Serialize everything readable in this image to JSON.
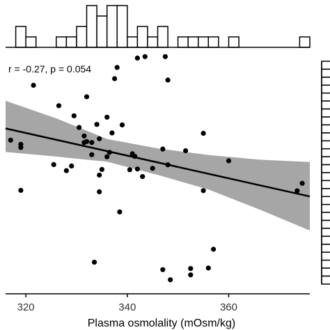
{
  "chart_data": {
    "type": "scatter",
    "title": "",
    "xlabel": "Plasma osmolality (mOsm/kg)",
    "ylabel": "",
    "xlim": [
      316,
      376
    ],
    "ylim": [
      0,
      1
    ],
    "x_ticks": [
      320,
      340,
      360
    ],
    "x_tick_labels": [
      "320",
      "340",
      "360"
    ],
    "annotation": "r = -0.27, p = 0.054",
    "grid": false,
    "legend": "none",
    "points": [
      {
        "x": 317.0,
        "y": 0.64
      },
      {
        "x": 319.0,
        "y": 0.622
      },
      {
        "x": 319.0,
        "y": 0.609
      },
      {
        "x": 319.0,
        "y": 0.426
      },
      {
        "x": 321.5,
        "y": 0.874
      },
      {
        "x": 325.5,
        "y": 0.536
      },
      {
        "x": 326.5,
        "y": 0.787
      },
      {
        "x": 328.0,
        "y": 0.51
      },
      {
        "x": 329.0,
        "y": 0.53
      },
      {
        "x": 329.5,
        "y": 0.744
      },
      {
        "x": 330.5,
        "y": 0.694
      },
      {
        "x": 331.5,
        "y": 0.658
      },
      {
        "x": 331.5,
        "y": 0.63
      },
      {
        "x": 332.0,
        "y": 0.825
      },
      {
        "x": 332.0,
        "y": 0.634
      },
      {
        "x": 333.0,
        "y": 0.63
      },
      {
        "x": 333.0,
        "y": 0.578
      },
      {
        "x": 333.5,
        "y": 0.12
      },
      {
        "x": 334.0,
        "y": 0.707
      },
      {
        "x": 334.5,
        "y": 0.646
      },
      {
        "x": 334.5,
        "y": 0.491
      },
      {
        "x": 334.5,
        "y": 0.42
      },
      {
        "x": 335.0,
        "y": 0.515
      },
      {
        "x": 336.0,
        "y": 0.738
      },
      {
        "x": 336.0,
        "y": 0.569
      },
      {
        "x": 336.5,
        "y": 0.588
      },
      {
        "x": 337.0,
        "y": 0.671
      },
      {
        "x": 337.5,
        "y": 0.902
      },
      {
        "x": 338.0,
        "y": 0.95
      },
      {
        "x": 338.5,
        "y": 0.334
      },
      {
        "x": 339.0,
        "y": 0.705
      },
      {
        "x": 340.5,
        "y": 0.514
      },
      {
        "x": 341.0,
        "y": 0.582
      },
      {
        "x": 341.5,
        "y": 0.571
      },
      {
        "x": 342.0,
        "y": 0.99
      },
      {
        "x": 342.0,
        "y": 0.517
      },
      {
        "x": 343.0,
        "y": 0.485
      },
      {
        "x": 343.5,
        "y": 0.996
      },
      {
        "x": 345.0,
        "y": 0.52
      },
      {
        "x": 347.0,
        "y": 0.602
      },
      {
        "x": 347.0,
        "y": 0.088
      },
      {
        "x": 347.5,
        "y": 0.996
      },
      {
        "x": 348.0,
        "y": 0.896
      },
      {
        "x": 348.0,
        "y": 0.535
      },
      {
        "x": 348.5,
        "y": 0.045
      },
      {
        "x": 351.5,
        "y": 0.595
      },
      {
        "x": 352.5,
        "y": 0.066
      },
      {
        "x": 352.5,
        "y": 0.093
      },
      {
        "x": 355.0,
        "y": 0.425
      },
      {
        "x": 355.0,
        "y": 0.669
      },
      {
        "x": 356.0,
        "y": 0.095
      },
      {
        "x": 357.0,
        "y": 0.175
      },
      {
        "x": 360.0,
        "y": 0.552
      },
      {
        "x": 373.5,
        "y": 0.424
      },
      {
        "x": 374.5,
        "y": 0.456
      }
    ],
    "regression": {
      "x": [
        316,
        376
      ],
      "y": [
        0.69,
        0.4
      ]
    },
    "confidence_band": {
      "x": [
        316,
        326,
        336,
        346,
        356,
        366,
        376
      ],
      "lower": [
        0.59,
        0.57,
        0.548,
        0.492,
        0.43,
        0.345,
        0.255
      ],
      "upper": [
        0.808,
        0.733,
        0.645,
        0.605,
        0.577,
        0.557,
        0.547
      ]
    },
    "top_histogram": {
      "bin_width": 2,
      "bin_starts": [
        316,
        318,
        320,
        322,
        324,
        326,
        328,
        330,
        332,
        334,
        336,
        338,
        340,
        342,
        344,
        346,
        348,
        350,
        352,
        354,
        356,
        358,
        360,
        362,
        364,
        366,
        368,
        370,
        372,
        374
      ],
      "counts": [
        0,
        2,
        1,
        0,
        0,
        1,
        1,
        2,
        4,
        3,
        4,
        4,
        1,
        2,
        1,
        2,
        0,
        1,
        1,
        1,
        1,
        0,
        1,
        0,
        0,
        0,
        0,
        0,
        0,
        1
      ]
    },
    "side_histogram": {
      "bin_count": 28,
      "counts": [
        1,
        1,
        1,
        1,
        1,
        1,
        1,
        1,
        1,
        1,
        1,
        1,
        1,
        1,
        1,
        1,
        1,
        1,
        1,
        1,
        1,
        1,
        1,
        1,
        1,
        1,
        1,
        1
      ]
    }
  }
}
